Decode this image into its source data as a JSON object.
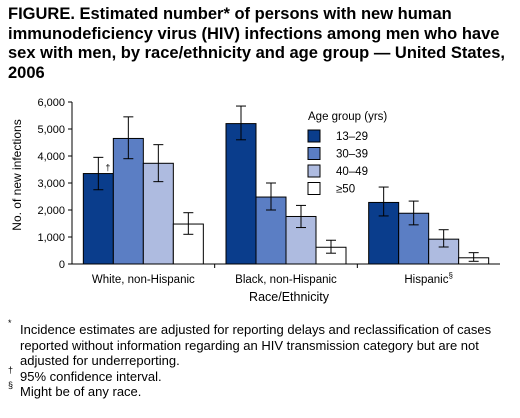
{
  "title": "FIGURE. Estimated number* of persons with new human immunodeficiency virus (HIV) infections among men who have sex with men, by race/ethnicity and age group — United States, 2006",
  "chart_data": {
    "type": "bar",
    "categories": [
      "White, non-Hispanic",
      "Black, non-Hispanic",
      "Hispanic§"
    ],
    "category_labels": [
      {
        "text": "White, non-Hispanic",
        "mark": ""
      },
      {
        "text": "Black, non-Hispanic",
        "mark": ""
      },
      {
        "text": "Hispanic",
        "mark": "§"
      }
    ],
    "series": [
      {
        "name": "13–29",
        "color": "#0a3d8c",
        "values": [
          3350,
          5200,
          2280
        ],
        "ci_low": [
          2750,
          4600,
          1780
        ],
        "ci_high": [
          3950,
          5850,
          2850
        ]
      },
      {
        "name": "30–39",
        "color": "#5b7ec4",
        "values": [
          4650,
          2480,
          1880
        ],
        "ci_low": [
          3900,
          2000,
          1450
        ],
        "ci_high": [
          5450,
          3000,
          2330
        ]
      },
      {
        "name": "40–49",
        "color": "#aebbe0",
        "values": [
          3730,
          1760,
          920
        ],
        "ci_low": [
          3050,
          1350,
          630
        ],
        "ci_high": [
          4420,
          2170,
          1270
        ]
      },
      {
        "name": "≥50",
        "color": "#ffffff",
        "values": [
          1480,
          620,
          230
        ],
        "ci_low": [
          1100,
          400,
          100
        ],
        "ci_high": [
          1900,
          880,
          420
        ]
      }
    ],
    "bar_annotation": {
      "text": "†",
      "category_index": 0,
      "series_index": 0
    },
    "ylim": [
      0,
      6000
    ],
    "yticks": [
      0,
      1000,
      2000,
      3000,
      4000,
      5000,
      6000
    ],
    "ytick_labels": [
      "0",
      "1,000",
      "2,000",
      "3,000",
      "4,000",
      "5,000",
      "6,000"
    ],
    "xlabel": "Race/Ethnicity",
    "ylabel": "No. of new infections",
    "legend_title": "Age group (yrs)",
    "legend_position": "top-right",
    "grid": false,
    "error_bars": true
  },
  "footnotes": [
    {
      "mark": "*",
      "text": "Incidence estimates are adjusted for reporting delays and reclassification of cases reported without information regarding an HIV transmission category but are not adjusted for underreporting."
    },
    {
      "mark": "†",
      "text": "95% confidence interval."
    },
    {
      "mark": "§",
      "text": "Might be of any race."
    }
  ]
}
